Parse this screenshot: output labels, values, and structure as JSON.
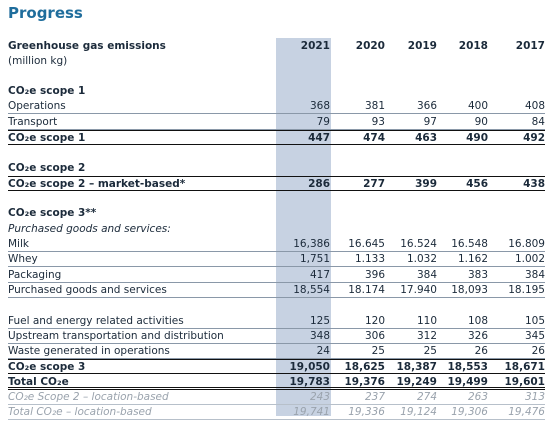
{
  "title": "Progress",
  "table": {
    "header": {
      "label": "Greenhouse gas emissions",
      "unit": "(million kg)",
      "years": [
        "2021",
        "2020",
        "2019",
        "2018",
        "2017"
      ]
    },
    "rows": [
      {
        "label": "CO₂e scope 1"
      },
      {
        "label": "Operations",
        "values": [
          "368",
          "381",
          "366",
          "400",
          "408"
        ]
      },
      {
        "label": "Transport",
        "values": [
          "79",
          "93",
          "97",
          "90",
          "84"
        ]
      },
      {
        "label": "CO₂e scope 1",
        "values": [
          "447",
          "474",
          "463",
          "490",
          "492"
        ]
      },
      {
        "label": "CO₂e scope 2"
      },
      {
        "label": "CO₂e scope 2 – market-based*",
        "values": [
          "286",
          "277",
          "399",
          "456",
          "438"
        ]
      },
      {
        "label": "CO₂e scope 3**"
      },
      {
        "label": "Purchased goods and services:"
      },
      {
        "label": "Milk",
        "values": [
          "16,386",
          "16.645",
          "16.524",
          "16.548",
          "16.809"
        ]
      },
      {
        "label": "Whey",
        "values": [
          "1,751",
          "1.133",
          "1.032",
          "1.162",
          "1.002"
        ]
      },
      {
        "label": "Packaging",
        "values": [
          "417",
          "396",
          "384",
          "383",
          "384"
        ]
      },
      {
        "label": "Purchased goods and services",
        "values": [
          "18,554",
          "18.174",
          "17.940",
          "18,093",
          "18.195"
        ]
      },
      {
        "label": "Fuel and energy related activities",
        "values": [
          "125",
          "120",
          "110",
          "108",
          "105"
        ]
      },
      {
        "label": "Upstream transportation and distribution",
        "values": [
          "348",
          "306",
          "312",
          "326",
          "345"
        ]
      },
      {
        "label": "Waste generated in operations",
        "values": [
          "24",
          "25",
          "25",
          "26",
          "26"
        ]
      },
      {
        "label": "CO₂e scope 3",
        "values": [
          "19,050",
          "18,625",
          "18,387",
          "18,553",
          "18,671"
        ]
      },
      {
        "label": "Total CO₂e",
        "values": [
          "19,783",
          "19,376",
          "19,249",
          "19,499",
          "19,601"
        ]
      },
      {
        "label": "CO₂e Scope 2 – location-based",
        "values": [
          "243",
          "237",
          "274",
          "263",
          "313"
        ]
      },
      {
        "label": "Total CO₂e – location-based",
        "values": [
          "19,741",
          "19,336",
          "19,124",
          "19,306",
          "19,476"
        ]
      }
    ]
  }
}
